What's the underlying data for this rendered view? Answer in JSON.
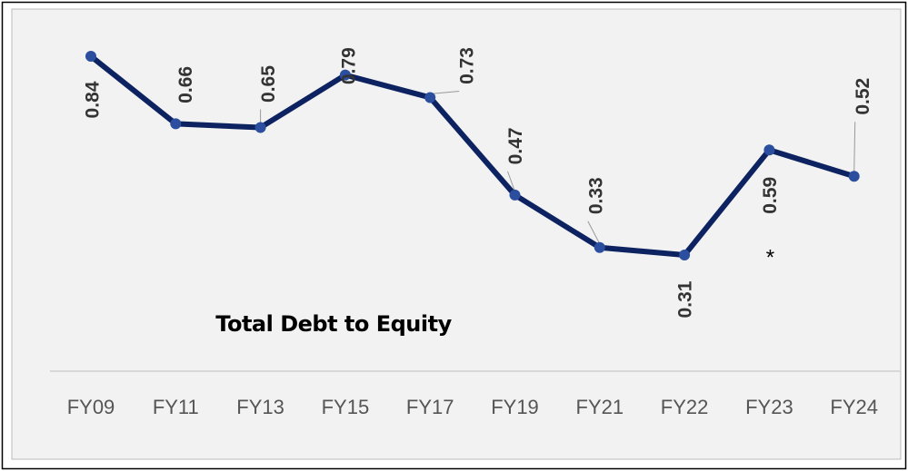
{
  "chart_data": {
    "type": "line",
    "title": "Total Debt to Equity",
    "categories": [
      "FY09",
      "FY11",
      "FY13",
      "FY15",
      "FY17",
      "FY19",
      "FY21",
      "FY22",
      "FY23",
      "FY24"
    ],
    "series": [
      {
        "name": "Total Debt to Equity",
        "color": "#0d2260",
        "marker_color": "#2b4f9e",
        "values": [
          0.84,
          0.66,
          0.65,
          0.79,
          0.73,
          0.47,
          0.33,
          0.31,
          0.59,
          0.52
        ]
      }
    ],
    "annotations": [
      {
        "text": "*",
        "category": "FY23"
      }
    ],
    "grid": false
  }
}
